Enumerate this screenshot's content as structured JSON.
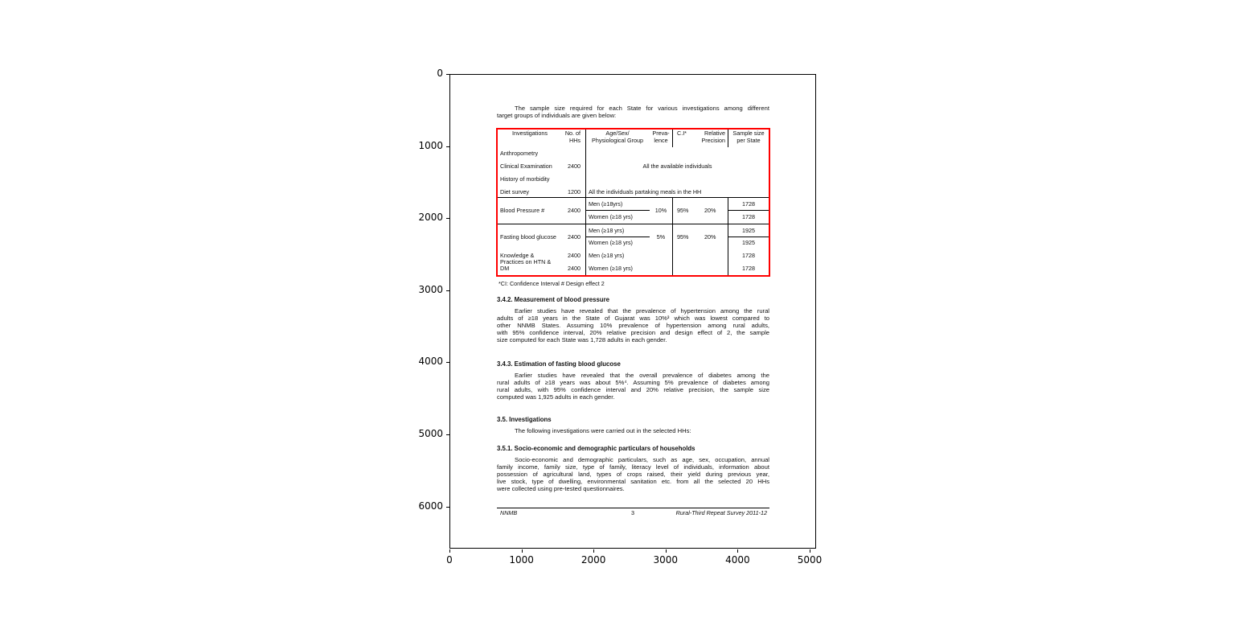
{
  "axes": {
    "x_ticks": [
      "0",
      "1000",
      "2000",
      "3000",
      "4000",
      "5000"
    ],
    "y_ticks": [
      "0",
      "1000",
      "2000",
      "3000",
      "4000",
      "5000",
      "6000"
    ]
  },
  "highlight_color": "#ff0000",
  "doc": {
    "intro": [
      "The sample size required for each State for various investigations among different",
      "target groups of individuals are given below:"
    ],
    "table": {
      "headers": {
        "investigations": "Investigations",
        "hhs1": "No. of",
        "hhs2": "HHs",
        "age1": "Age/Sex/",
        "age2": "Physiological Group",
        "prev1": "Preva-",
        "prev2": "lence",
        "ci": "C.I*",
        "rp1": "Relative",
        "rp2": "Precision",
        "ss1": "Sample size",
        "ss2": "per State"
      },
      "rows": [
        {
          "inv": "Anthropometry"
        },
        {
          "inv": "Clinical Examination",
          "hhs": "2400",
          "group": "All the available individuals"
        },
        {
          "inv": "History of morbidity"
        },
        {
          "inv": "Diet survey",
          "hhs": "1200",
          "group": "All the individuals partaking meals in the HH"
        }
      ],
      "bp": {
        "inv": "Blood Pressure #",
        "hhs": "2400",
        "men": "Men (≥18yrs)",
        "women": "Women (≥18 yrs)",
        "prev": "10%",
        "ci": "95%",
        "rp": "20%",
        "ss_men": "1728",
        "ss_women": "1728"
      },
      "fbg": {
        "inv": "Fasting blood glucose",
        "hhs": "2400",
        "men": "Men (≥18 yrs)",
        "women": "Women (≥18 yrs)",
        "prev": "5%",
        "ci": "95%",
        "rp": "20%",
        "ss_men": "1925",
        "ss_women": "1925"
      },
      "kp": {
        "inv1": "Knowledge &",
        "inv2": "Practices on HTN &",
        "inv3": "DM",
        "hhs_men": "2400",
        "hhs_women": "2400",
        "men": "Men (≥18 yrs)",
        "women": "Women (≥18 yrs)",
        "ss_men": "1728",
        "ss_women": "1728"
      }
    },
    "footnote": "*CI: Confidence Interval       # Design effect 2",
    "s342": {
      "title": "3.4.2. Measurement of blood pressure",
      "lines": [
        "Earlier studies have revealed that the prevalence of hypertension among the rural",
        "adults of ≥18 years in the State of Gujarat was 10%³ which was lowest compared to",
        "other NNMB States. Assuming 10% prevalence of hypertension among rural adults,",
        "with 95% confidence interval, 20% relative precision and design effect of 2, the sample",
        "size computed for each State was 1,728 adults in each gender."
      ]
    },
    "s343": {
      "title": "3.4.3. Estimation of fasting blood glucose",
      "lines": [
        "Earlier studies have revealed that the overall prevalence of diabetes among the",
        "rural adults of ≥18 years was about 5%⁴. Assuming 5% prevalence of diabetes among",
        "rural adults, with 95% confidence interval and 20% relative precision, the sample size",
        "computed was 1,925 adults in each gender."
      ]
    },
    "s35": {
      "title": "3.5. Investigations",
      "lines": [
        "The following investigations were carried out in the selected HHs:"
      ]
    },
    "s351": {
      "title": "3.5.1. Socio-economic and demographic particulars of households",
      "lines": [
        "Socio-economic and demographic particulars, such as age, sex, occupation, annual",
        "family income, family size, type of family, literacy level of individuals, information about",
        "possession of agricultural land, types of crops raised, their yield during previous year,",
        "live stock, type of dwelling, environmental sanitation etc. from all the selected 20 HHs",
        "were collected using pre-tested questionnaires."
      ]
    },
    "footer": {
      "left": "NNMB",
      "center": "3",
      "right": "Rural-Third Repeat Survey 2011-12"
    }
  }
}
